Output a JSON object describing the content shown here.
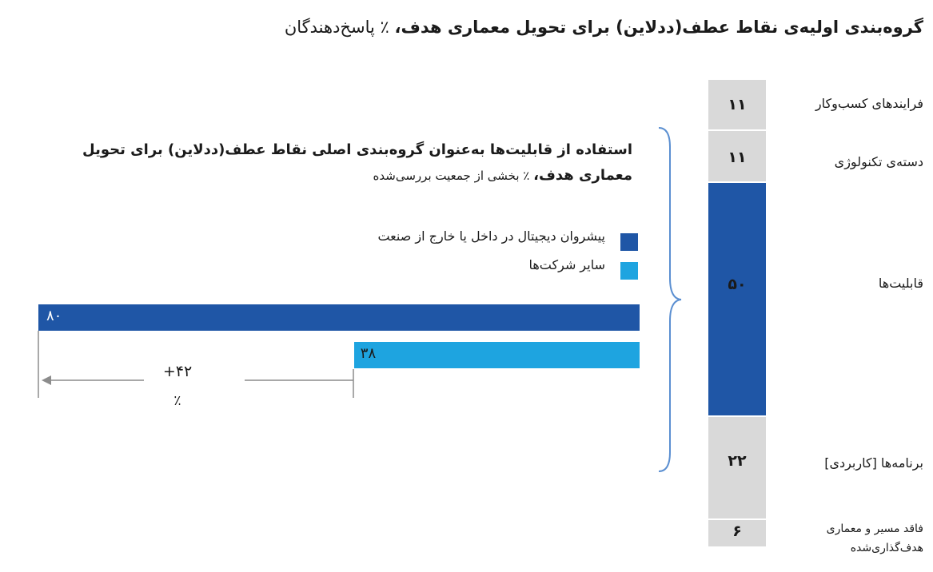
{
  "title_bold": "گروه‌بندی اولیه‌ی نقاط عطف(ددلاین) برای تحویل معماری هدف،",
  "title_rest": " ٪ پاسخ‌دهندگان",
  "stack": [
    {
      "label": "فرایندهای کسب‌وکار",
      "value": "۱۱",
      "num": 11,
      "color": "#d9d9d9"
    },
    {
      "label": "دسته‌ی تکنولوژی",
      "value": "۱۱",
      "num": 11,
      "color": "#d9d9d9"
    },
    {
      "label": "قابلیت‌ها",
      "value": "۵۰",
      "num": 50,
      "color": "#1f56a6"
    },
    {
      "label": "برنامه‌ها [کاربردی]",
      "value": "۲۲",
      "num": 22,
      "color": "#d9d9d9"
    },
    {
      "label": "فاقد مسیر و معماری هدف‌گذاری‌شده",
      "value": "۶",
      "num": 6,
      "color": "#d9d9d9"
    }
  ],
  "subchart": {
    "title_bold": "استفاده از قابلیت‌ها به‌عنوان گروه‌بندی اصلی نقاط عطف(ددلاین) برای تحویل معماری هدف،",
    "title_note": " ٪ بخشی از جمعیت بررسی‌شده",
    "legend": [
      {
        "label": "پیشروان دیجیتال در داخل یا خارج از صنعت",
        "color": "#1f56a6"
      },
      {
        "label": "سایر شرکت‌ها",
        "color": "#1ea4e0"
      }
    ],
    "bars": [
      {
        "label": "۸۰",
        "value": 80
      },
      {
        "label": "۳۸",
        "value": 38
      }
    ],
    "difference": "+۴۲",
    "difference_unit": "٪"
  },
  "chart_data": {
    "type": "bar",
    "title": "گروه‌بندی اولیه‌ی نقاط عطف(ددلاین) برای تحویل معماری هدف، ٪ پاسخ‌دهندگان",
    "stacked_bar": {
      "categories": [
        "فرایندهای کسب‌وکار",
        "دسته‌ی تکنولوژی",
        "قابلیت‌ها",
        "برنامه‌ها [کاربردی]",
        "فاقد مسیر و معماری هدف‌گذاری‌شده"
      ],
      "values": [
        11,
        11,
        50,
        22,
        6
      ]
    },
    "comparison_bar": {
      "series": [
        {
          "name": "پیشروان دیجیتال در داخل یا خارج از صنعت",
          "values": [
            80
          ]
        },
        {
          "name": "سایر شرکت‌ها",
          "values": [
            38
          ]
        }
      ],
      "difference": 42
    }
  }
}
